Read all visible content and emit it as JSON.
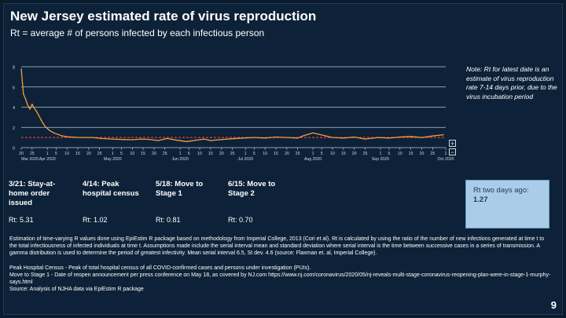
{
  "slide": {
    "title": "New Jersey estimated rate of virus reproduction",
    "subtitle": "Rt = average # of persons infected by each infectious person",
    "page_number": "9"
  },
  "controls": {
    "zoom_in": "+",
    "zoom_out": "−"
  },
  "note": "Note: Rt for latest date is an estimate of virus reproduction rate 7-14 days prior,  due to the virus incubation period",
  "milestones": [
    {
      "label": "3/21: Stay-at-home order issued",
      "rt": "Rt: 5.31"
    },
    {
      "label": "4/14: Peak hospital census",
      "rt": "Rt: 1.02"
    },
    {
      "label": "5/18: Move to Stage 1",
      "rt": "Rt: 0.81"
    },
    {
      "label": "6/15: Move to Stage 2",
      "rt": "Rt: 0.70"
    }
  ],
  "rt_box": {
    "label": "Rt two days ago:",
    "value": "1.27"
  },
  "footnotes": [
    "Estimation of time-varying R values done using EpiEstim R package based on methodology from Imperial College, 2013 (Cori et al).    Rt is calculated by using the ratio of the number of new infections generated at time t to the total infectiousness of infected individuals at time t. Assumptions made include the serial interval mean and standard deviation where serial interval is the time between successive cases in a series of transmission.  A gamma distribution is used to determine the period of greatest infectivity.  Mean serial interval 6.5, St dev. 4.6 (source: Flaxman et. al, Imperial College).",
    "Peak Hospital Census - Peak of total hospital census of all COVID-confirmed cases and persons under investigation (PUIs).",
    "Move to Stage 1 - Date of reopen announcement per press conference on May 18, as covered by NJ.com https://www.nj.com/coronavirus/2020/05/nj-reveals-multi-stage-coronavirus-reopening-plan-were-in-stage-1-murphy-says.html",
    "Source: Analysis of NJHA data via EpiEstim R package"
  ],
  "chart_data": {
    "type": "line",
    "title": "",
    "xlabel": "",
    "ylabel": "",
    "ylim": [
      0,
      8
    ],
    "yticks": [
      "0",
      "2",
      "4",
      "6",
      "8"
    ],
    "grid": true,
    "x_range": [
      "2020-03-20",
      "2020-10-01"
    ],
    "x_ticks": [
      "20",
      "25",
      "1",
      "5",
      "10",
      "15",
      "20",
      "25",
      "1",
      "5",
      "10",
      "15",
      "20",
      "25",
      "1",
      "5",
      "10",
      "15",
      "20",
      "25",
      "1",
      "5",
      "10",
      "15",
      "20",
      "25",
      "1",
      "5",
      "10",
      "15",
      "20",
      "25",
      "1",
      "5",
      "10",
      "15",
      "20",
      "25",
      "1",
      "5",
      "10",
      "15",
      "20",
      "25",
      "1",
      "5",
      "10",
      "15",
      "20",
      "25",
      "1"
    ],
    "x_month_labels": [
      "Mar 2020",
      "Apr 2020",
      "May 2020",
      "Jun 2020",
      "Jul 2020",
      "Aug 2020",
      "Sep 2020",
      "Oct 2020"
    ],
    "reference_line": {
      "y": 1,
      "color": "#e03b3b",
      "style": "dashed"
    },
    "series": [
      {
        "color": "#f39c3c",
        "x": [
          "2020-03-20",
          "2020-03-21",
          "2020-03-22",
          "2020-03-23",
          "2020-03-24",
          "2020-03-25",
          "2020-03-26",
          "2020-03-27",
          "2020-03-28",
          "2020-03-29",
          "2020-03-30",
          "2020-03-31",
          "2020-04-01",
          "2020-04-02",
          "2020-04-04",
          "2020-04-06",
          "2020-04-08",
          "2020-04-10",
          "2020-04-12",
          "2020-04-14",
          "2020-04-18",
          "2020-04-22",
          "2020-04-26",
          "2020-05-01",
          "2020-05-06",
          "2020-05-10",
          "2020-05-14",
          "2020-05-18",
          "2020-05-22",
          "2020-05-26",
          "2020-05-30",
          "2020-06-04",
          "2020-06-08",
          "2020-06-12",
          "2020-06-15",
          "2020-06-20",
          "2020-06-25",
          "2020-06-30",
          "2020-07-05",
          "2020-07-10",
          "2020-07-15",
          "2020-07-20",
          "2020-07-25",
          "2020-07-28",
          "2020-08-01",
          "2020-08-05",
          "2020-08-10",
          "2020-08-15",
          "2020-08-20",
          "2020-08-25",
          "2020-08-31",
          "2020-09-05",
          "2020-09-10",
          "2020-09-15",
          "2020-09-20",
          "2020-09-25",
          "2020-09-30"
        ],
        "y": [
          7.8,
          5.31,
          4.8,
          4.2,
          3.8,
          4.3,
          3.9,
          3.6,
          3.2,
          2.8,
          2.4,
          2.1,
          1.9,
          1.7,
          1.45,
          1.3,
          1.15,
          1.08,
          1.05,
          1.02,
          1.0,
          1.0,
          0.9,
          0.85,
          0.8,
          0.78,
          0.85,
          0.81,
          0.7,
          0.9,
          0.75,
          0.6,
          0.72,
          0.85,
          0.7,
          0.8,
          0.88,
          0.95,
          1.0,
          0.95,
          1.05,
          1.0,
          0.95,
          1.2,
          1.45,
          1.25,
          1.0,
          0.95,
          1.05,
          0.85,
          1.0,
          0.95,
          1.05,
          1.1,
          1.0,
          1.15,
          1.27
        ]
      }
    ]
  }
}
